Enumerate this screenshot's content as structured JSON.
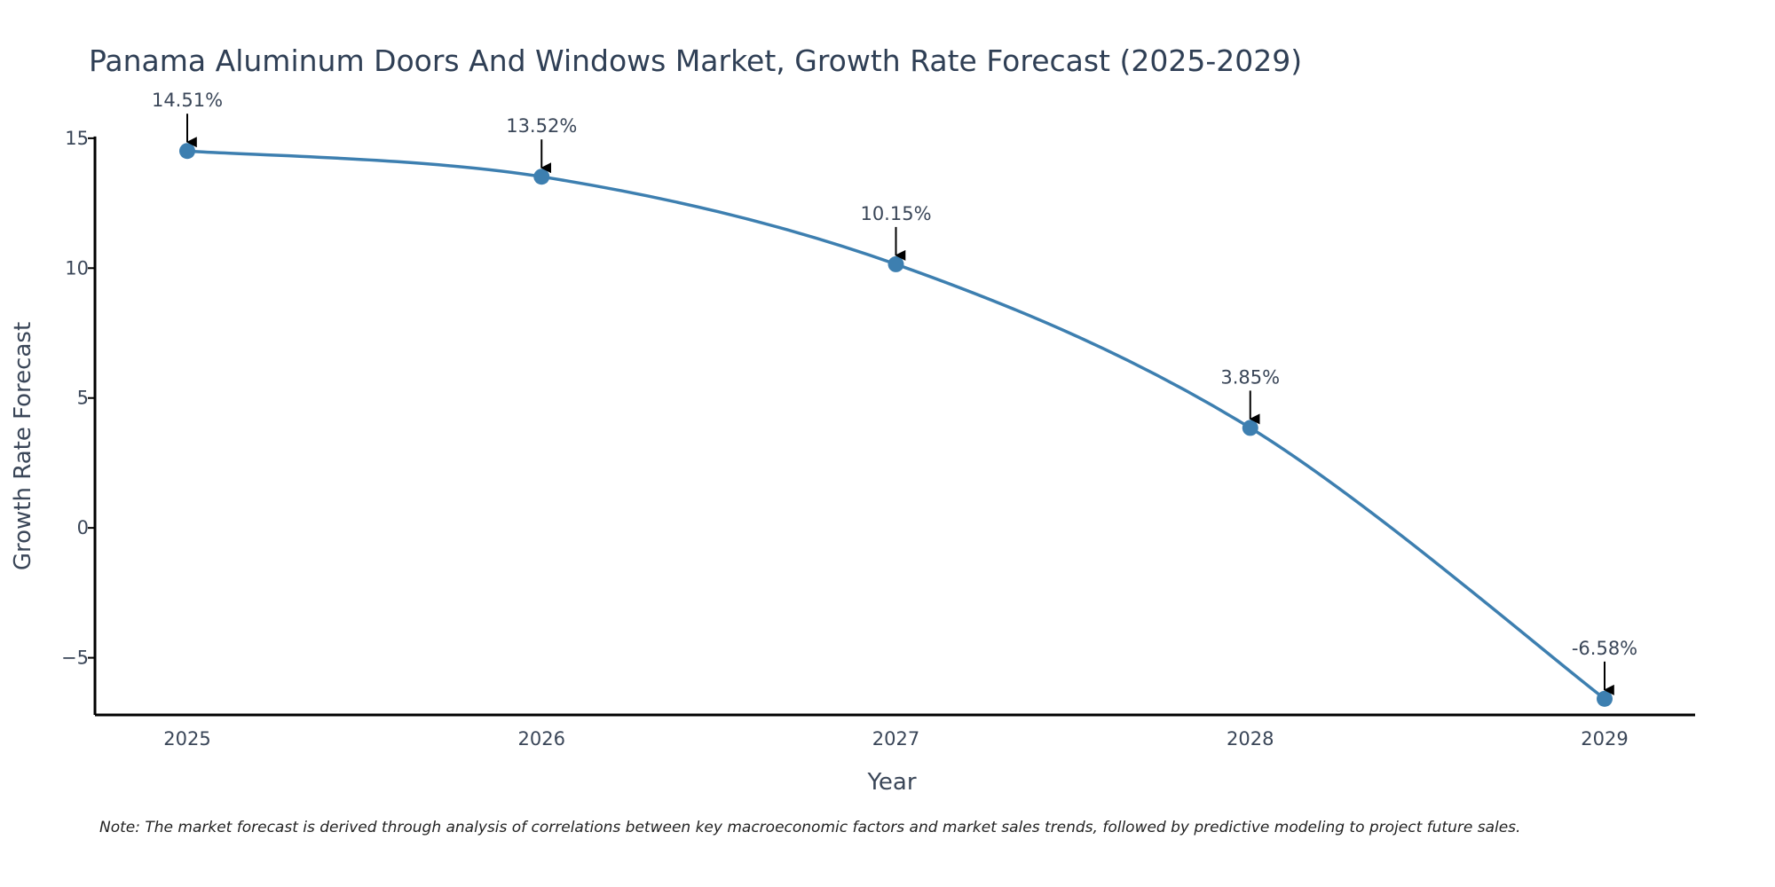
{
  "chart_data": {
    "type": "line",
    "title": "Panama Aluminum Doors And Windows Market, Growth Rate Forecast (2025-2029)",
    "xlabel": "Year",
    "ylabel": "Growth Rate Forecast",
    "categories": [
      "2025",
      "2026",
      "2027",
      "2028",
      "2029"
    ],
    "values": [
      14.51,
      13.52,
      10.15,
      3.85,
      -6.58
    ],
    "data_labels": [
      "14.51%",
      "13.52%",
      "10.15%",
      "3.85%",
      "-6.58%"
    ],
    "ylim": [
      -7.2,
      15.2
    ],
    "yticks": [
      15,
      10,
      5,
      0,
      -5
    ],
    "ytick_labels": [
      "15",
      "10",
      "5",
      "0",
      "−5"
    ],
    "grid": false,
    "legend": "none",
    "colors": {
      "line": "#3d7fb0",
      "marker": "#3d7fb0",
      "annotation_arrow": "#000000",
      "axis": "#000000"
    },
    "note": "Note: The market forecast is derived through analysis of correlations between key macroeconomic factors and market sales trends, followed by predictive modeling to project future sales."
  }
}
